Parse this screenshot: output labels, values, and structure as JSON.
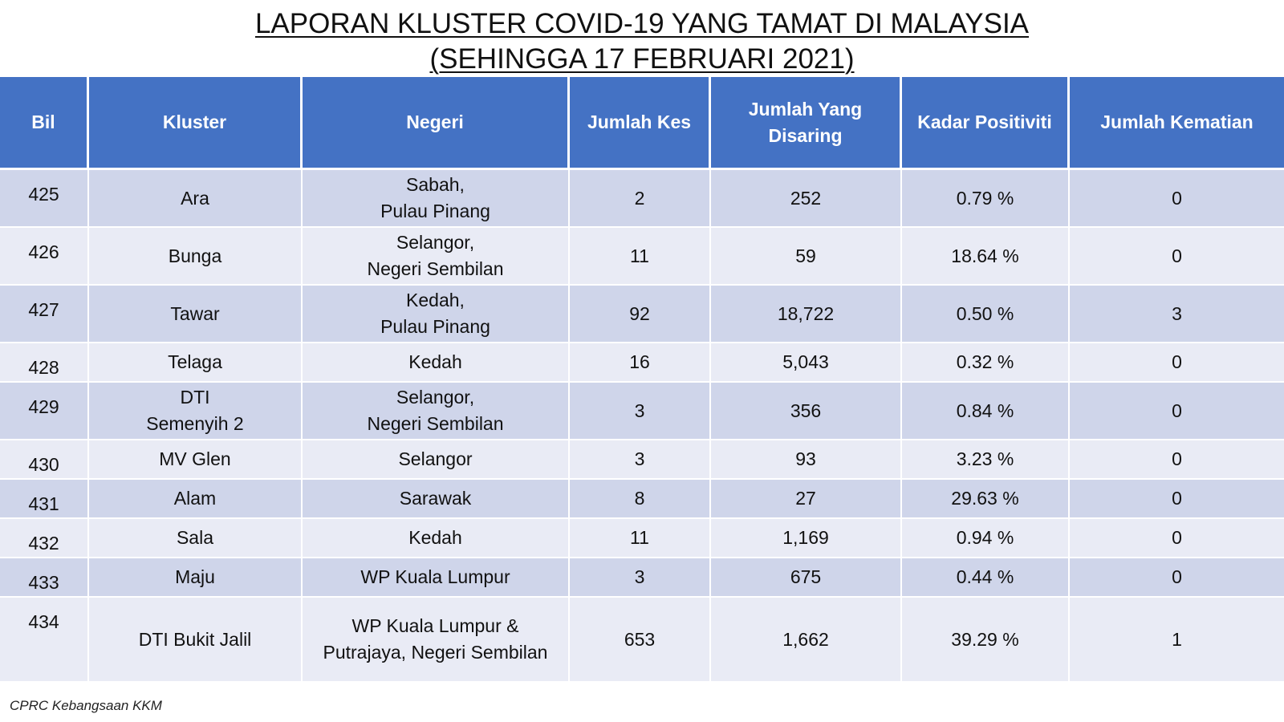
{
  "title": {
    "line1": "LAPORAN KLUSTER COVID-19 YANG TAMAT DI MALAYSIA",
    "line2": "(SEHINGGA 17 FEBRUARI 2021)"
  },
  "table": {
    "headers": {
      "bil": "Bil",
      "kluster": "Kluster",
      "negeri": "Negeri",
      "jumlah_kes": "Jumlah Kes",
      "disaring_line1": "Jumlah Yang",
      "disaring_line2": "Disaring",
      "kadar": "Kadar Positiviti",
      "kematian": "Jumlah Kematian"
    },
    "rows": [
      {
        "bil": "425",
        "kluster": [
          "Ara"
        ],
        "negeri": [
          "Sabah,",
          "Pulau Pinang"
        ],
        "kes": "2",
        "disaring": "252",
        "kadar": "0.79 %",
        "kematian": "0"
      },
      {
        "bil": "426",
        "kluster": [
          "Bunga"
        ],
        "negeri": [
          "Selangor,",
          "Negeri Sembilan"
        ],
        "kes": "11",
        "disaring": "59",
        "kadar": "18.64 %",
        "kematian": "0"
      },
      {
        "bil": "427",
        "kluster": [
          "Tawar"
        ],
        "negeri": [
          "Kedah,",
          "Pulau Pinang"
        ],
        "kes": "92",
        "disaring": "18,722",
        "kadar": "0.50 %",
        "kematian": "3"
      },
      {
        "bil": "428",
        "kluster": [
          "Telaga"
        ],
        "negeri": [
          "Kedah"
        ],
        "kes": "16",
        "disaring": "5,043",
        "kadar": "0.32 %",
        "kematian": "0"
      },
      {
        "bil": "429",
        "kluster": [
          "DTI",
          "Semenyih 2"
        ],
        "negeri": [
          "Selangor,",
          "Negeri Sembilan"
        ],
        "kes": "3",
        "disaring": "356",
        "kadar": "0.84 %",
        "kematian": "0"
      },
      {
        "bil": "430",
        "kluster": [
          "MV Glen"
        ],
        "negeri": [
          "Selangor"
        ],
        "kes": "3",
        "disaring": "93",
        "kadar": "3.23 %",
        "kematian": "0"
      },
      {
        "bil": "431",
        "kluster": [
          "Alam"
        ],
        "negeri": [
          "Sarawak"
        ],
        "kes": "8",
        "disaring": "27",
        "kadar": "29.63 %",
        "kematian": "0"
      },
      {
        "bil": "432",
        "kluster": [
          "Sala"
        ],
        "negeri": [
          "Kedah"
        ],
        "kes": "11",
        "disaring": "1,169",
        "kadar": "0.94 %",
        "kematian": "0"
      },
      {
        "bil": "433",
        "kluster": [
          "Maju"
        ],
        "negeri": [
          "WP Kuala Lumpur"
        ],
        "kes": "3",
        "disaring": "675",
        "kadar": "0.44 %",
        "kematian": "0"
      },
      {
        "bil": "434",
        "kluster": [
          "DTI Bukit Jalil"
        ],
        "negeri": [
          "WP Kuala Lumpur &",
          "Putrajaya, Negeri Sembilan"
        ],
        "kes": "653",
        "disaring": "1,662",
        "kadar": "39.29 %",
        "kematian": "1"
      }
    ]
  },
  "footer": {
    "source": "CPRC Kebangsaan KKM"
  },
  "colors": {
    "header_bg": "#4472c4",
    "row_odd_bg": "#cfd5ea",
    "row_even_bg": "#e9ebf5"
  }
}
